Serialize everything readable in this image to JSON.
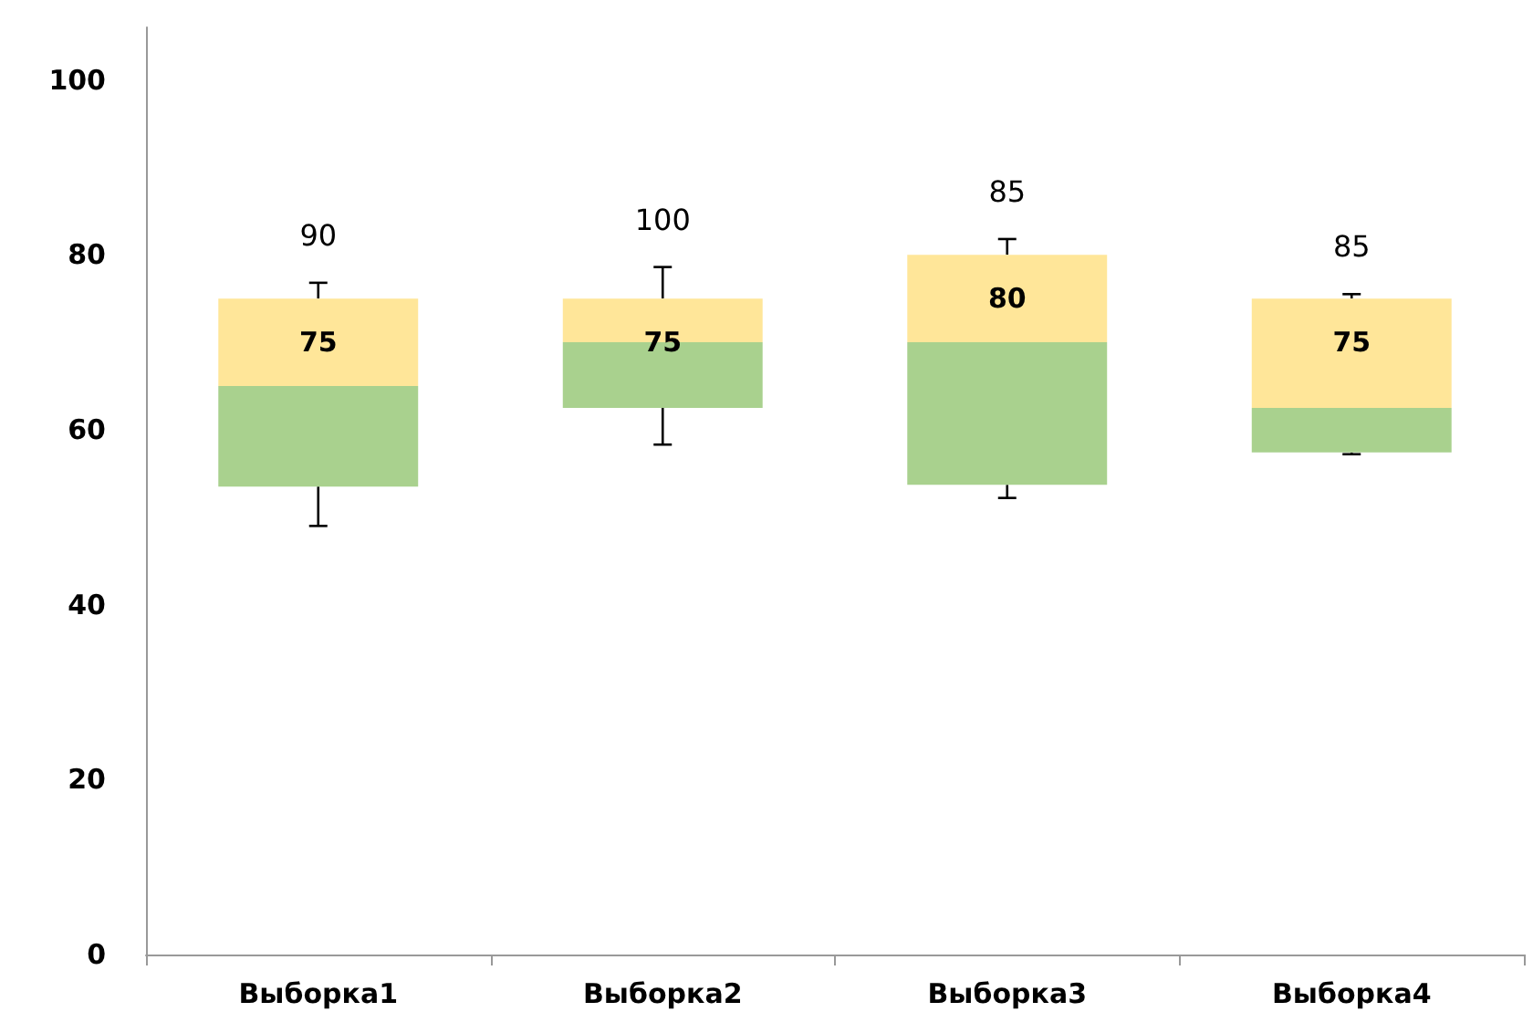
{
  "chart_data": {
    "type": "box",
    "categories": [
      "Выборка1",
      "Выборка2",
      "Выборка3",
      "Выборка4"
    ],
    "series": [
      {
        "colors": [
          [
            "#a9d18e",
            "#ffe699"
          ],
          [
            "#a9d18e",
            "#ffe699"
          ],
          [
            "#a9d18e",
            "#ffe699"
          ],
          [
            "#a9d18e",
            "#ffe699"
          ]
        ],
        "value_labels": [
          "75",
          "75",
          "80",
          "75"
        ],
        "boxes": [
          {
            "low": 49,
            "q1": 53.5,
            "median": 65,
            "q3": 75,
            "high": 76.8
          },
          {
            "low": 58.3,
            "q1": 62.5,
            "median": 70,
            "q3": 75,
            "high": 78.6
          },
          {
            "low": 52.2,
            "q1": 53.7,
            "median": 70,
            "q3": 80,
            "high": 81.8
          },
          {
            "low": 57.2,
            "q1": 57.4,
            "median": 62.5,
            "q3": 75,
            "high": 75.5
          }
        ]
      }
    ],
    "annotations": [
      "90",
      "100",
      "85",
      "85"
    ],
    "ylim": [
      0,
      106
    ],
    "yticks": [
      0,
      20,
      40,
      60,
      80,
      100
    ],
    "grid": false
  }
}
